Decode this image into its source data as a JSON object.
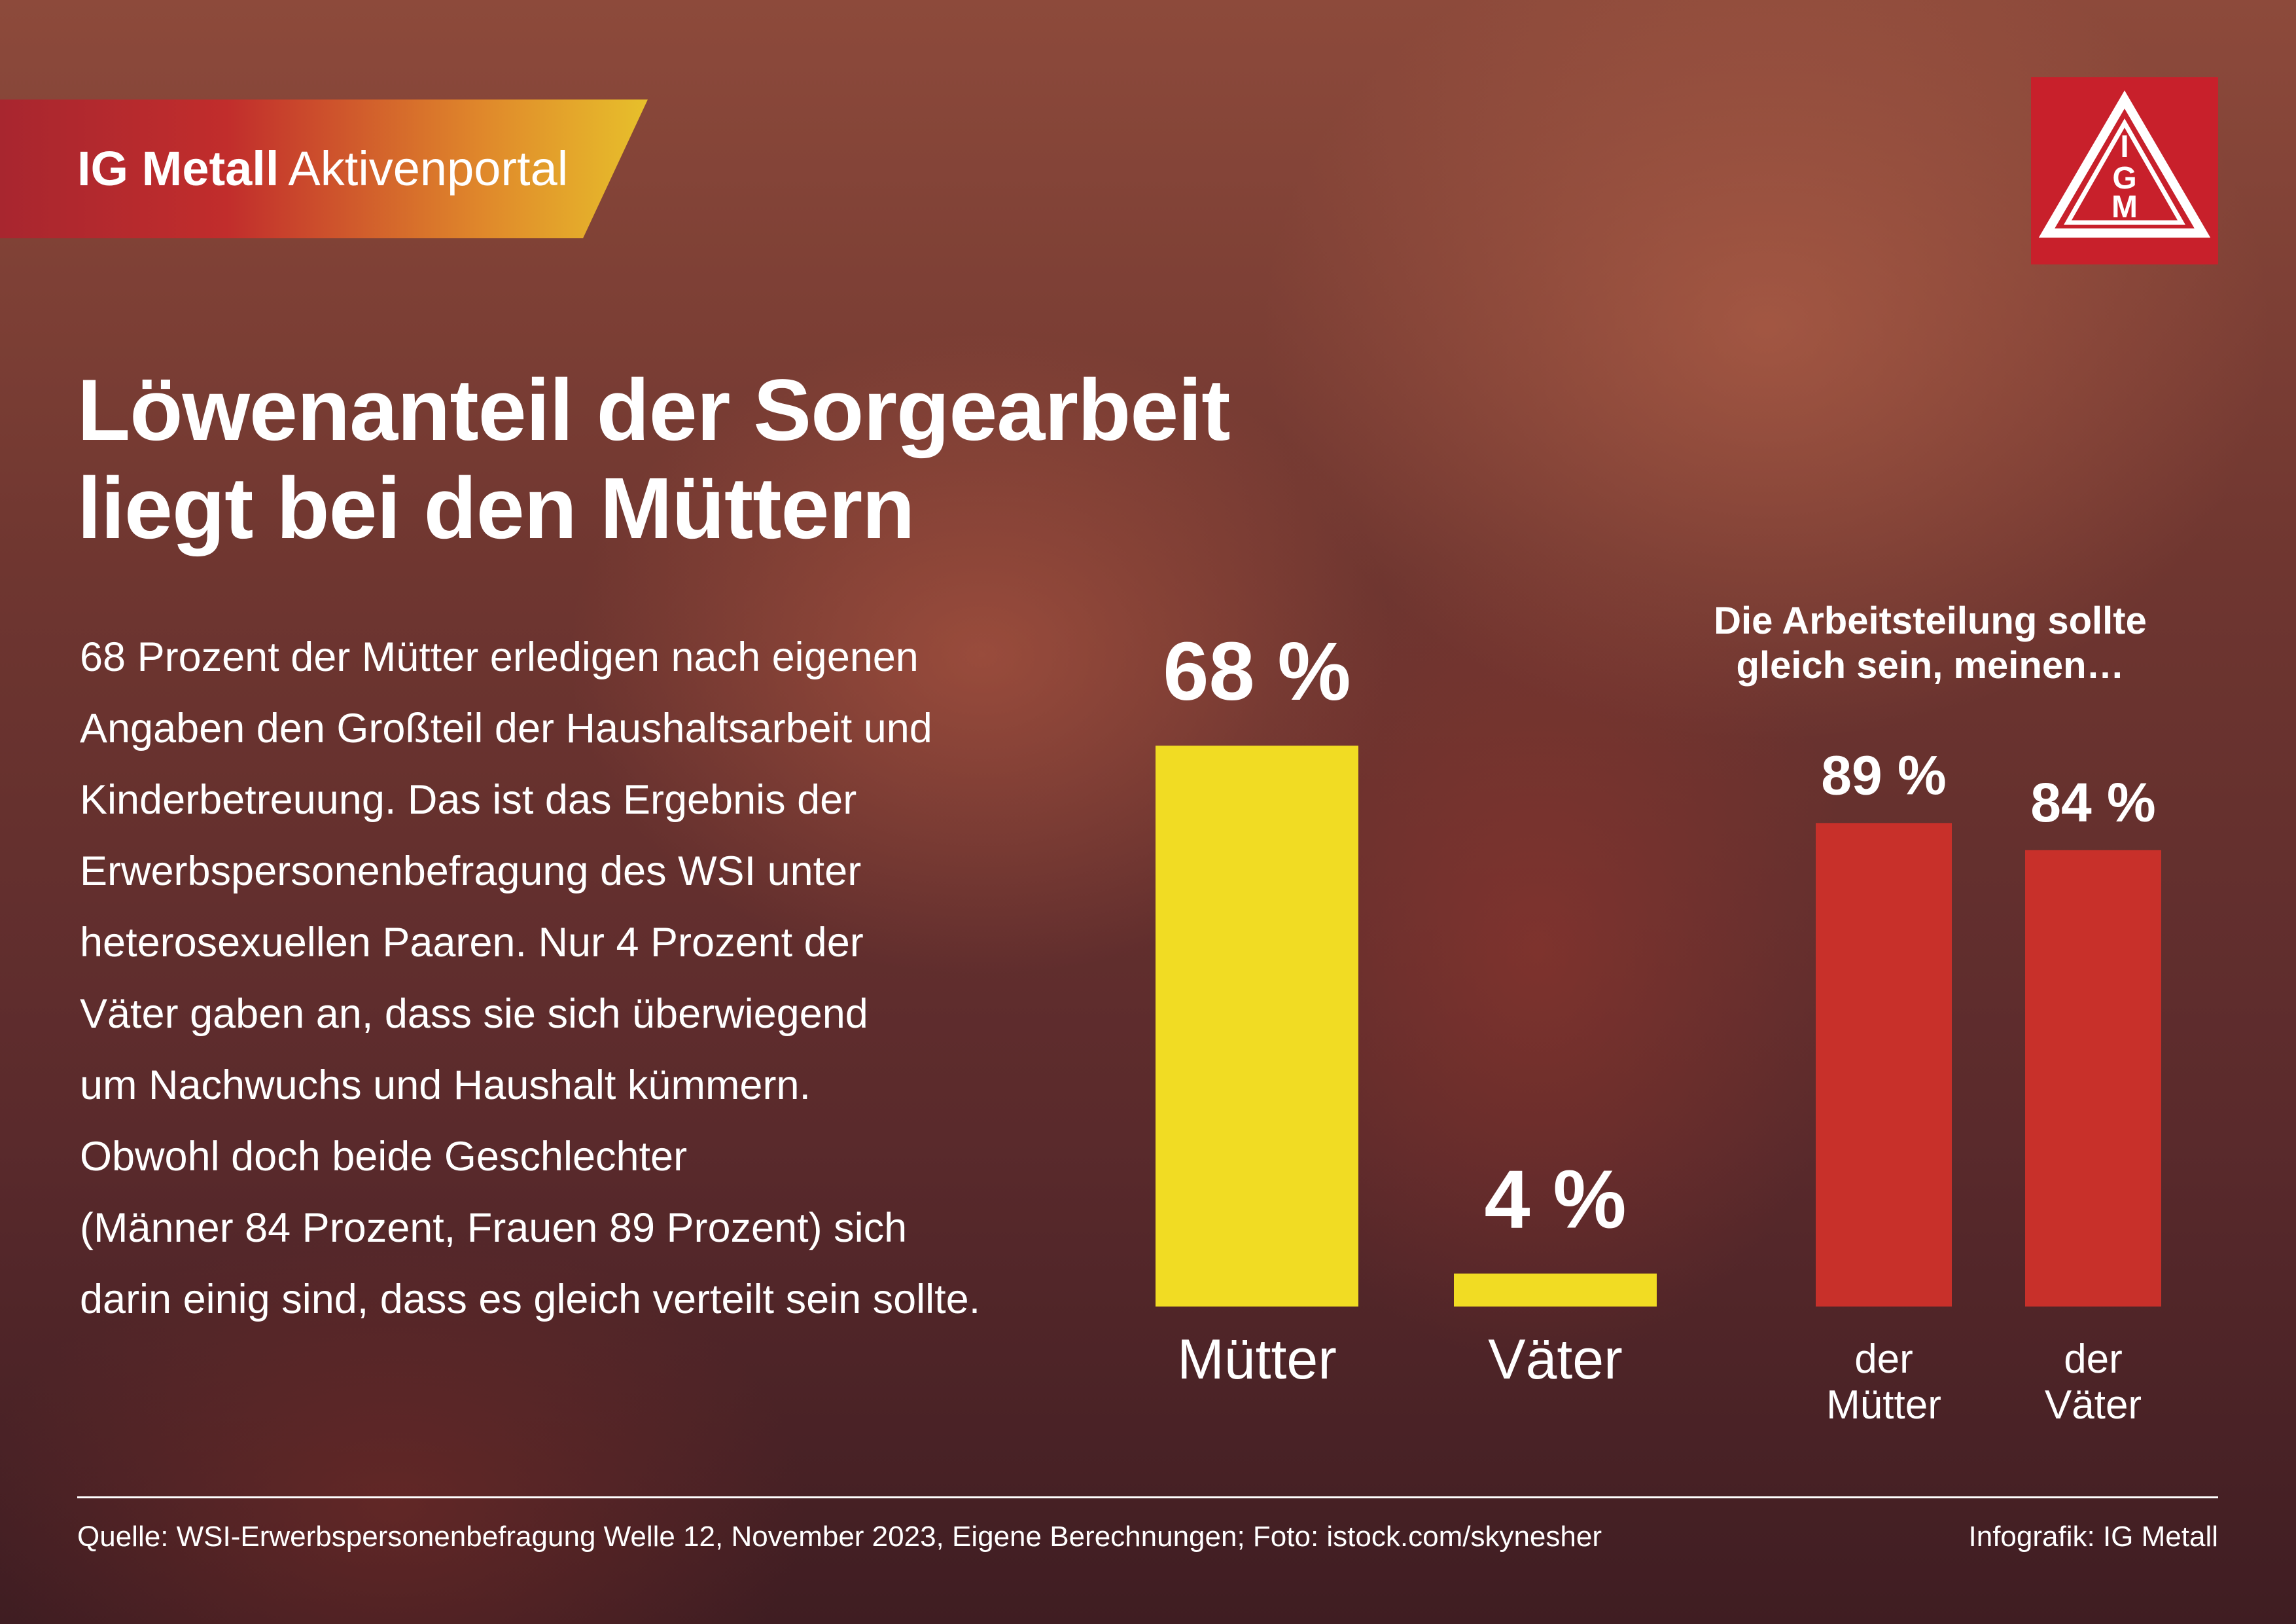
{
  "banner": {
    "strong": "IG Metall",
    "light": "Aktivenportal"
  },
  "logo": {
    "icon": "ig-metall-logo-icon",
    "letters": "IGM"
  },
  "title": {
    "line1": "Löwenanteil der Sorgearbeit",
    "line2": "liegt bei den Müttern"
  },
  "body_lines": [
    "68 Prozent der Mütter erledigen nach eigenen",
    "Angaben den Großteil der Haushaltsarbeit und",
    "Kinderbetreuung. Das ist das Ergebnis der",
    "Erwerbspersonenbefragung des WSI unter",
    "heterosexuellen Paaren. Nur 4 Prozent der",
    "Väter gaben an, dass sie sich überwiegend",
    "um Nachwuchs und Haushalt kümmern.",
    "Obwohl doch beide Geschlechter",
    "(Männer 84 Prozent, Frauen 89 Prozent) sich",
    "darin einig sind, dass es gleich verteilt sein sollte."
  ],
  "chart_data": [
    {
      "type": "bar",
      "categories": [
        "Mütter",
        "Väter"
      ],
      "values": [
        68,
        4
      ],
      "value_labels": [
        "68 %",
        "4 %"
      ],
      "color": "#f1dc23",
      "ylim": [
        0,
        100
      ]
    },
    {
      "type": "bar",
      "title_lines": [
        "Die Arbeitsteilung sollte",
        "gleich sein, meinen…"
      ],
      "categories": [
        [
          "der",
          "Mütter"
        ],
        [
          "der",
          "Väter"
        ]
      ],
      "values": [
        89,
        84
      ],
      "value_labels": [
        "89 %",
        "84 %"
      ],
      "color": "#c8302a",
      "ylim": [
        0,
        100
      ]
    }
  ],
  "footer": {
    "source": "Quelle: WSI-Erwerbspersonenbefragung Welle 12, November 2023, Eigene Berechnungen; Foto: istock.com/skynesher",
    "credit": "Infografik: IG Metall"
  },
  "colors": {
    "yellow": "#f1dc23",
    "red": "#c8302a",
    "logo_red": "#c8202b"
  }
}
